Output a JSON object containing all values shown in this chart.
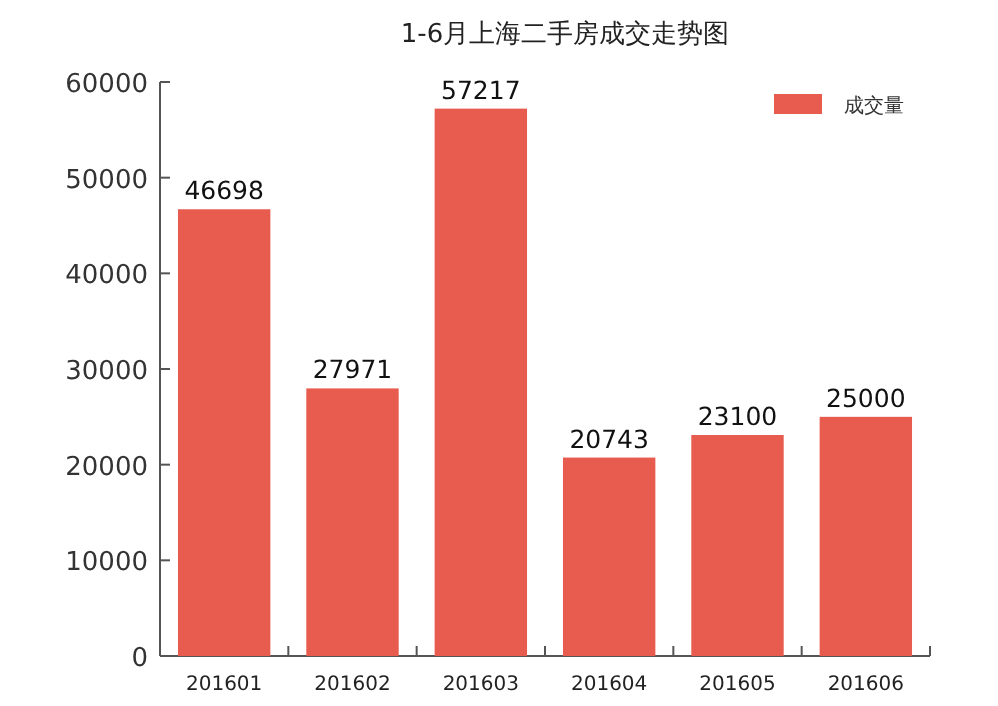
{
  "chart_data": {
    "type": "bar",
    "title": "1-6月上海二手房成交走势图",
    "categories": [
      "201601",
      "201602",
      "201603",
      "201604",
      "201605",
      "201606"
    ],
    "series": [
      {
        "name": "成交量",
        "color": "#e85c50",
        "values": [
          46698,
          27971,
          57217,
          20743,
          23100,
          25000
        ]
      }
    ],
    "ylim": [
      0,
      60000
    ],
    "yticks": [
      0,
      10000,
      20000,
      30000,
      40000,
      50000,
      60000
    ],
    "data_labels": true,
    "legend": "top right",
    "grid": false
  }
}
